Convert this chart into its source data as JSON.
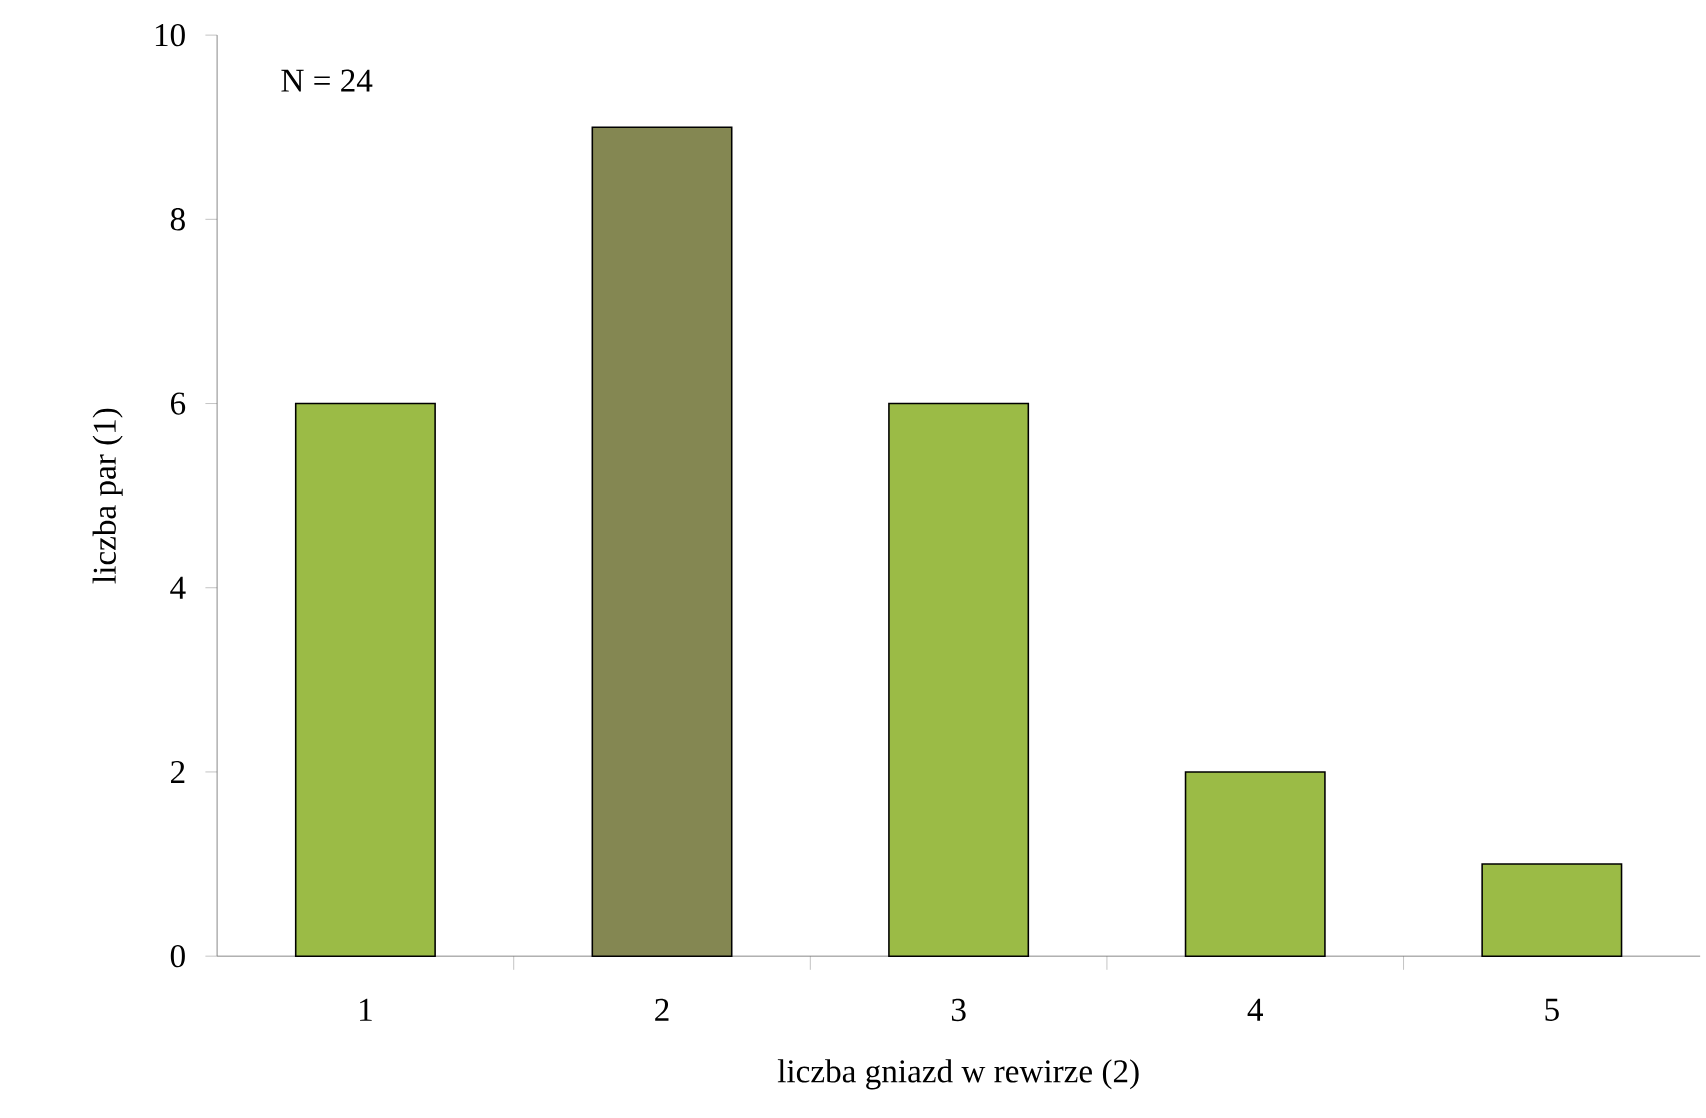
{
  "chart_data": {
    "type": "bar",
    "xlabel": "liczba gniazd w rewirze (2)",
    "ylabel": "liczba par (1)",
    "categories": [
      "1",
      "2",
      "3",
      "4",
      "5"
    ],
    "values": [
      6,
      9,
      6,
      2,
      1
    ],
    "colors": [
      "#9bbb46",
      "#848752",
      "#9bbb46",
      "#9bbb46",
      "#9bbb46"
    ],
    "ylim": [
      0,
      10
    ],
    "yticks": [
      0,
      2,
      4,
      6,
      8,
      10
    ],
    "grid": false,
    "annotations": [
      "N = 24"
    ]
  }
}
